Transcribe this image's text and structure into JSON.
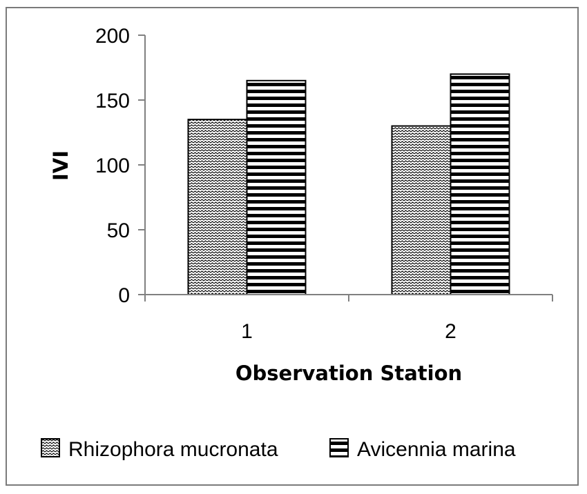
{
  "chart_data": {
    "type": "bar",
    "categories": [
      "1",
      "2"
    ],
    "series": [
      {
        "name": "Rhizophora mucronata",
        "values": [
          135,
          130
        ],
        "pattern": "zigzag"
      },
      {
        "name": "Avicennia marina",
        "values": [
          165,
          170
        ],
        "pattern": "horizontal-stripes"
      }
    ],
    "title": "",
    "xlabel": "Observation Station",
    "ylabel": "IVI",
    "ylim": [
      0,
      200
    ],
    "yticks": [
      0,
      50,
      100,
      150,
      200
    ],
    "grid": false,
    "legend_position": "bottom",
    "colors": {
      "bar_fill": "#ffffff",
      "pattern": "#000000",
      "axis": "#808080",
      "frame": "#7a7a7a"
    }
  }
}
